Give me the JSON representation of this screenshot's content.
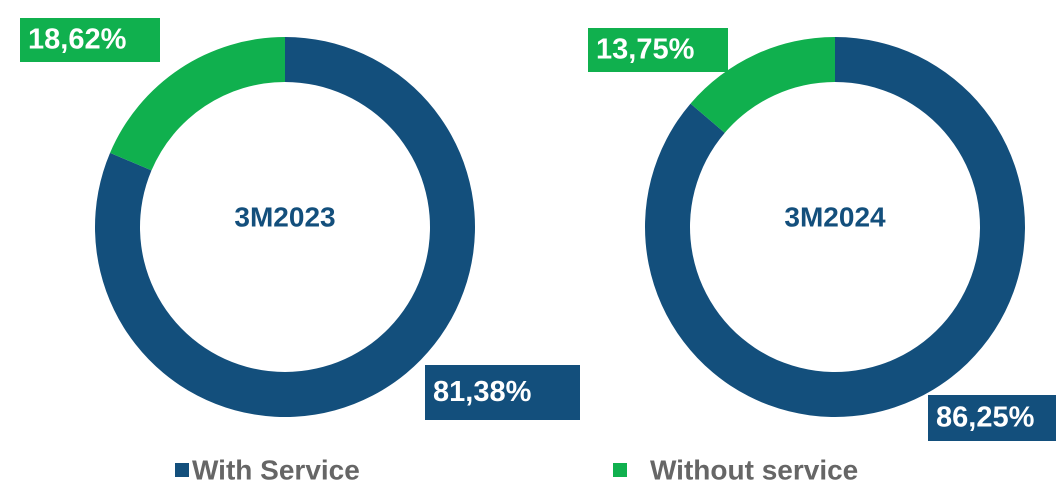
{
  "chart_data": [
    {
      "type": "donut",
      "center_label": "3M2023",
      "values": [
        81.38,
        18.62
      ],
      "value_labels": [
        "81,38%",
        "18,62%"
      ],
      "colors": [
        "#134f7c",
        "#10b04e"
      ]
    },
    {
      "type": "donut",
      "center_label": "3M2024",
      "values": [
        86.25,
        13.75
      ],
      "value_labels": [
        "86,25%",
        "13,75%"
      ],
      "colors": [
        "#134f7c",
        "#10b04e"
      ]
    }
  ],
  "legend": {
    "entries": [
      {
        "name": "With Service",
        "color": "#134f7c"
      },
      {
        "name": "Without service",
        "color": "#10b04e"
      }
    ]
  }
}
